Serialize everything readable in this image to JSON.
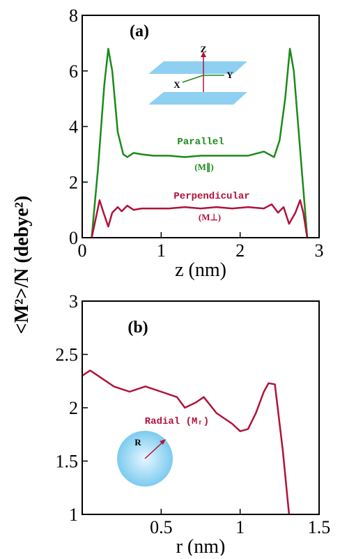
{
  "chart_data": [
    {
      "type": "line",
      "panel_label": "(a)",
      "xlabel": "z (nm)",
      "ylabel": "<M²>/N  (debye²)",
      "xlim": [
        0,
        3
      ],
      "xticks": [
        0,
        1,
        2,
        3
      ],
      "ylim": [
        0,
        8
      ],
      "yticks": [
        0,
        2,
        4,
        6,
        8
      ],
      "series": [
        {
          "name": "Parallel",
          "color": "#1a8a1a",
          "x": [
            0.12,
            0.2,
            0.28,
            0.33,
            0.38,
            0.45,
            0.52,
            0.57,
            0.65,
            0.75,
            0.9,
            1.1,
            1.3,
            1.5,
            1.7,
            1.9,
            2.1,
            2.3,
            2.43,
            2.5,
            2.57,
            2.63,
            2.68,
            2.75,
            2.85
          ],
          "values": [
            0,
            2.5,
            5.5,
            6.8,
            6,
            3.8,
            3,
            2.9,
            3.05,
            3,
            2.95,
            2.95,
            2.9,
            2.95,
            2.95,
            2.95,
            2.95,
            3.1,
            2.9,
            3.5,
            5,
            6.8,
            6,
            3.5,
            0
          ]
        },
        {
          "name": "Perpendicular",
          "color": "#b0123a",
          "x": [
            0.12,
            0.18,
            0.22,
            0.27,
            0.33,
            0.38,
            0.45,
            0.5,
            0.57,
            0.65,
            0.75,
            0.9,
            1.1,
            1.3,
            1.5,
            1.7,
            1.9,
            2.1,
            2.3,
            2.4,
            2.48,
            2.55,
            2.62,
            2.7,
            2.76,
            2.8,
            2.85
          ],
          "values": [
            0,
            0.8,
            1.35,
            0.9,
            0.4,
            0.9,
            1.1,
            0.95,
            1.15,
            1,
            1.05,
            1.05,
            1.05,
            1.1,
            1.05,
            1.1,
            1.05,
            1.1,
            1.05,
            1.2,
            0.9,
            1.1,
            0.5,
            0.9,
            1.35,
            0.9,
            0
          ]
        }
      ],
      "annotations": [
        {
          "text": "(M∥)",
          "color": "#1a8a1a"
        },
        {
          "text": "(M⊥)",
          "color": "#b0123a"
        },
        {
          "text": "Z",
          "color": "#000000"
        },
        {
          "text": "Y",
          "color": "#000000"
        },
        {
          "text": "X",
          "color": "#000000"
        }
      ]
    },
    {
      "type": "line",
      "panel_label": "(b)",
      "xlabel": "r (nm)",
      "xlim": [
        0,
        1.5
      ],
      "xticks": [
        0.5,
        1,
        1.5
      ],
      "ylim": [
        1,
        3
      ],
      "yticks": [
        1,
        1.5,
        2,
        2.5,
        3
      ],
      "series": [
        {
          "name": "Radial (Mᵣ)",
          "color": "#b0123a",
          "x": [
            0,
            0.05,
            0.1,
            0.2,
            0.3,
            0.4,
            0.5,
            0.6,
            0.65,
            0.72,
            0.77,
            0.85,
            0.95,
            1,
            1.05,
            1.1,
            1.15,
            1.18,
            1.22,
            1.27,
            1.31
          ],
          "values": [
            2.3,
            2.35,
            2.3,
            2.2,
            2.15,
            2.2,
            2.15,
            2.1,
            2,
            2.05,
            2.1,
            1.95,
            1.85,
            1.78,
            1.8,
            1.95,
            2.15,
            2.23,
            2.22,
            1.6,
            1
          ]
        }
      ],
      "annotations": [
        {
          "text": "R",
          "color": "#000000"
        }
      ]
    }
  ]
}
